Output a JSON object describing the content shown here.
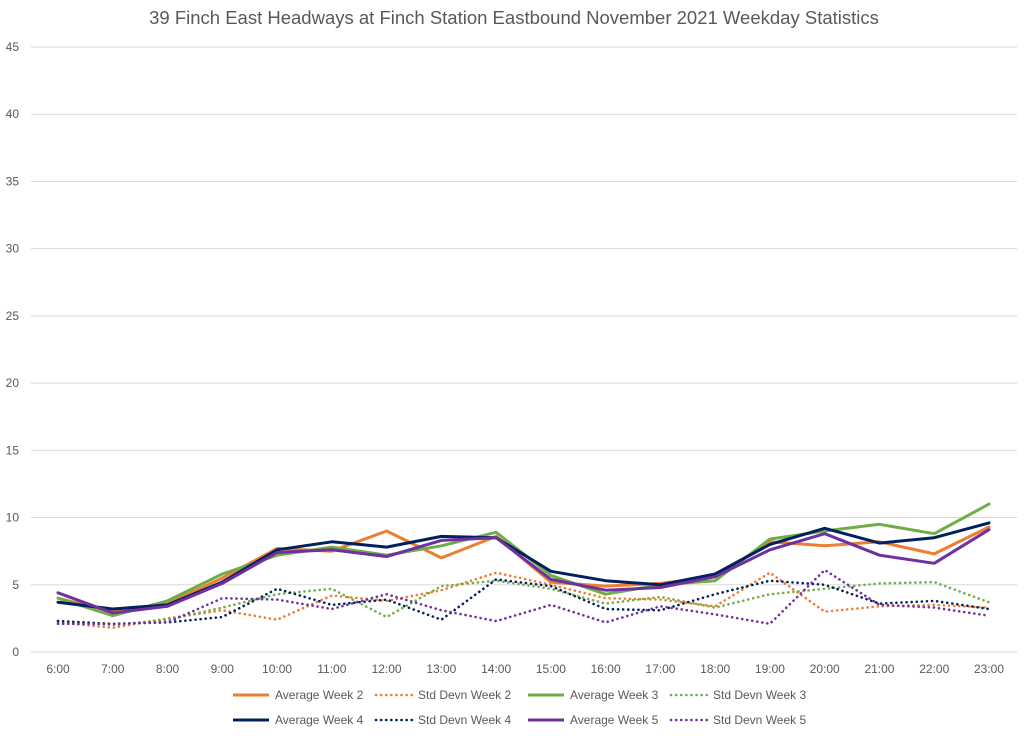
{
  "chart_data": {
    "type": "line",
    "title": "39 Finch East Headways at Finch Station Eastbound November 2021 Weekday Statistics",
    "xlabel": "",
    "ylabel": "",
    "ylim": [
      0,
      45
    ],
    "yticks": [
      0,
      5,
      10,
      15,
      20,
      25,
      30,
      35,
      40,
      45
    ],
    "categories": [
      "6:00",
      "7:00",
      "8:00",
      "9:00",
      "10:00",
      "11:00",
      "12:00",
      "13:00",
      "14:00",
      "15:00",
      "16:00",
      "17:00",
      "18:00",
      "19:00",
      "20:00",
      "21:00",
      "22:00",
      "23:00"
    ],
    "grid": true,
    "legend_position": "bottom",
    "series": [
      {
        "name": "Average Week 2",
        "color": "#ed7d31",
        "style": "solid",
        "values": [
          4.0,
          3.0,
          3.6,
          5.5,
          7.7,
          7.5,
          9.0,
          7.0,
          8.6,
          5.2,
          4.9,
          5.1,
          5.6,
          8.2,
          7.9,
          8.2,
          7.3,
          9.3
        ]
      },
      {
        "name": "Std Devn Week 2",
        "color": "#ed7d31",
        "style": "dotted",
        "values": [
          2.2,
          1.8,
          2.5,
          3.1,
          2.4,
          4.2,
          3.8,
          4.6,
          5.9,
          5.0,
          4.0,
          3.9,
          3.4,
          5.9,
          3.0,
          3.4,
          3.5,
          3.3
        ]
      },
      {
        "name": "Average Week 3",
        "color": "#70ad47",
        "style": "solid",
        "values": [
          4.0,
          2.7,
          3.8,
          5.8,
          7.2,
          7.8,
          7.2,
          7.9,
          8.9,
          5.7,
          4.3,
          5.0,
          5.3,
          8.4,
          9.0,
          9.5,
          8.8,
          11.0
        ]
      },
      {
        "name": "Std Devn Week 3",
        "color": "#70ad47",
        "style": "dotted",
        "values": [
          2.3,
          2.0,
          2.4,
          3.3,
          4.3,
          4.7,
          2.6,
          4.9,
          5.3,
          4.7,
          3.6,
          4.1,
          3.3,
          4.3,
          4.7,
          5.1,
          5.2,
          3.7
        ]
      },
      {
        "name": "Average Week 4",
        "color": "#002060",
        "style": "solid",
        "values": [
          3.7,
          3.2,
          3.5,
          5.2,
          7.6,
          8.2,
          7.8,
          8.6,
          8.5,
          6.0,
          5.3,
          5.0,
          5.8,
          8.0,
          9.2,
          8.1,
          8.5,
          9.6
        ]
      },
      {
        "name": "Std Devn Week 4",
        "color": "#002060",
        "style": "dotted",
        "values": [
          2.3,
          2.1,
          2.2,
          2.6,
          4.7,
          3.5,
          3.9,
          2.4,
          5.4,
          4.9,
          3.2,
          3.1,
          4.3,
          5.3,
          5.0,
          3.6,
          3.8,
          3.2
        ]
      },
      {
        "name": "Average Week 5",
        "color": "#7030a0",
        "style": "solid",
        "values": [
          4.4,
          2.9,
          3.4,
          5.1,
          7.4,
          7.6,
          7.1,
          8.3,
          8.5,
          5.4,
          4.6,
          4.8,
          5.6,
          7.6,
          8.8,
          7.2,
          6.6,
          9.1
        ]
      },
      {
        "name": "Std Devn Week 5",
        "color": "#7030a0",
        "style": "dotted",
        "values": [
          2.1,
          2.1,
          2.2,
          4.0,
          3.9,
          3.2,
          4.3,
          3.1,
          2.3,
          3.5,
          2.2,
          3.4,
          2.8,
          2.1,
          6.1,
          3.5,
          3.3,
          2.7
        ]
      }
    ]
  }
}
